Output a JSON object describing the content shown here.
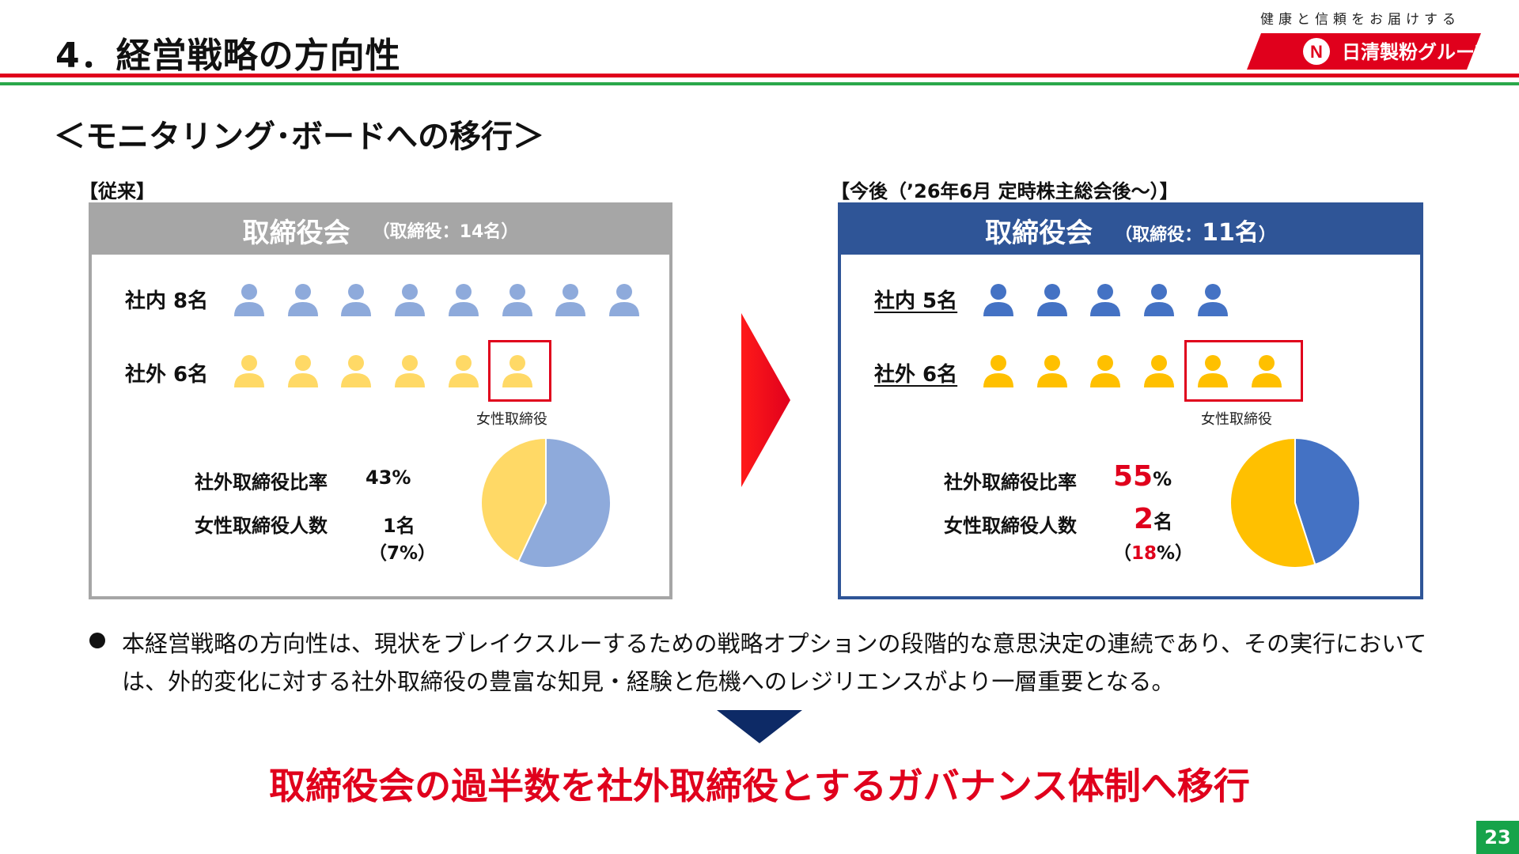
{
  "header": {
    "title": "4．経営戦略の方向性",
    "tagline": "健康と信頼をお届けする",
    "logo_text": "日清製粉グループ"
  },
  "subtitle": "＜モニタリング･ボードへの移行＞",
  "before": {
    "label": "【従来】",
    "title": "取締役会",
    "count_prefix": "（取締役：",
    "count_value": "14名",
    "count_suffix": "）",
    "internal_label": "社内 8名",
    "internal_count": 8,
    "external_label": "社外 6名",
    "external_count": 6,
    "female_caption": "女性取締役",
    "ratio_label": "社外取締役比率",
    "ratio_value": "43%",
    "female_label": "女性取締役人数",
    "female_value": "1名",
    "female_pct": "（7%）",
    "pie": {
      "external_pct": 43,
      "internal_pct": 57
    },
    "colors": {
      "frame": "#a6a6a6",
      "internal": "#8eaadb",
      "external": "#ffd966"
    }
  },
  "after": {
    "label": "【今後（’26年6月 定時株主総会後～）】",
    "title": "取締役会",
    "count_prefix": "（取締役：",
    "count_value": "11名",
    "count_suffix": "）",
    "internal_label": "社内 5名",
    "internal_count": 5,
    "external_label": "社外 6名",
    "external_count": 6,
    "female_caption": "女性取締役",
    "ratio_label": "社外取締役比率",
    "ratio_num": "55",
    "ratio_unit": "%",
    "female_label": "女性取締役人数",
    "female_num": "2",
    "female_unit": "名",
    "female_pct_open": "（",
    "female_pct_num": "18",
    "female_pct_close": "%）",
    "pie": {
      "external_pct": 55,
      "internal_pct": 45
    },
    "colors": {
      "frame": "#2f5597",
      "internal": "#4472c4",
      "external": "#ffc000"
    }
  },
  "bullet": "本経営戦略の方向性は、現状をブレイクスルーするための戦略オプションの段階的な意思決定の連続であり、その実行においては、外的変化に対する社外取締役の豊富な知見・経験と危機へのレジリエンスがより一層重要となる。",
  "conclusion": "取締役会の過半数を社外取締役とするガバナンス体制へ移行",
  "page_number": "23",
  "colors": {
    "accent_red": "#e0001c",
    "accent_green": "#2aa84a",
    "arrow_navy": "#0d2a66"
  }
}
